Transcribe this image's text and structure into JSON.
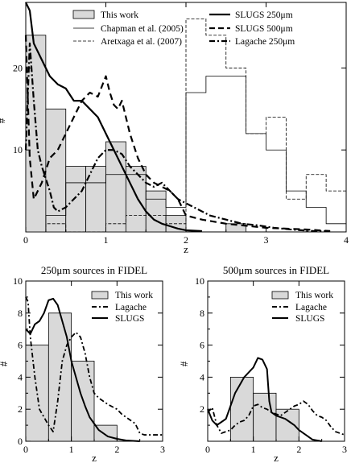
{
  "chart_data": [
    {
      "type": "bar",
      "xlabel": "z",
      "ylabel": "#",
      "xlim": [
        0,
        4
      ],
      "ylim": [
        0,
        28
      ],
      "xticks": [
        "0",
        "1",
        "2",
        "3",
        "4"
      ],
      "yticks": [
        "10",
        "20"
      ],
      "legend_left": [
        "This work",
        "Chapman et al. (2005)",
        "Aretxaga et al. (2007)"
      ],
      "legend_right": [
        "SLUGS 250μm",
        "SLUGS 500μm",
        "Lagache 250μm"
      ],
      "hist_this_work": {
        "edges": [
          0,
          0.25,
          0.5,
          0.75,
          1.0,
          1.25,
          1.5,
          1.75,
          2.0,
          2.25,
          2.5,
          2.75,
          3.0
        ],
        "counts": [
          24,
          15,
          8,
          8,
          11,
          8,
          5,
          2,
          0,
          0,
          1,
          0
        ]
      },
      "hist_chapman": {
        "edges": [
          0.25,
          0.5,
          0.75,
          1.0,
          1.25,
          1.5,
          1.75,
          2.0,
          2.25,
          2.5,
          2.75,
          3.0,
          3.25,
          3.5,
          3.75,
          4.0
        ],
        "counts": [
          2,
          6,
          6,
          7,
          7,
          4,
          3,
          17,
          19,
          19,
          12,
          10,
          5,
          3,
          1
        ]
      },
      "hist_aretxaga": {
        "edges": [
          0.25,
          0.5,
          0.75,
          1.0,
          1.25,
          1.5,
          1.75,
          2.0,
          2.25,
          2.5,
          2.75,
          3.0,
          3.25,
          3.5,
          3.75,
          4.0
        ],
        "counts": [
          1,
          0,
          0,
          1,
          2,
          2,
          1,
          26,
          24,
          20,
          12,
          14,
          4,
          7,
          5
        ]
      },
      "line_slugs250": {
        "x": [
          0.0,
          0.05,
          0.1,
          0.15,
          0.2,
          0.3,
          0.4,
          0.5,
          0.6,
          0.7,
          0.8,
          0.9,
          1.0,
          1.1,
          1.2,
          1.3,
          1.4,
          1.5,
          1.6,
          1.7,
          1.8,
          1.9,
          2.0,
          2.2
        ],
        "y": [
          28,
          27,
          23,
          22,
          21,
          19,
          18,
          17.5,
          16,
          16,
          15,
          14,
          12,
          10,
          8,
          6,
          4,
          2.5,
          1.5,
          1.0,
          0.7,
          0.4,
          0.2,
          0.1
        ]
      },
      "line_slugs500": {
        "x": [
          0.0,
          0.05,
          0.1,
          0.15,
          0.2,
          0.3,
          0.4,
          0.5,
          0.6,
          0.7,
          0.8,
          0.9,
          1.0,
          1.05,
          1.1,
          1.15,
          1.2,
          1.3,
          1.4,
          1.5,
          1.6,
          1.7,
          1.8,
          1.9,
          2.0,
          2.2,
          2.5,
          3.0,
          3.5,
          3.8
        ],
        "y": [
          24,
          9,
          4,
          5,
          6,
          9,
          10,
          12,
          14,
          16,
          17,
          16.5,
          19,
          17,
          15.5,
          15,
          16,
          12,
          9,
          7,
          6,
          5.5,
          5,
          4,
          2,
          1.5,
          1,
          0.5,
          0.3,
          0.1
        ]
      },
      "line_lagache250": {
        "x": [
          0.0,
          0.05,
          0.1,
          0.15,
          0.2,
          0.3,
          0.35,
          0.4,
          0.5,
          0.6,
          0.7,
          0.8,
          0.9,
          1.0,
          1.1,
          1.2,
          1.3,
          1.4,
          1.5,
          1.6,
          1.7,
          1.8,
          1.9,
          2.0,
          2.1,
          2.2,
          2.3,
          2.5,
          2.7,
          2.9,
          3.1,
          3.3,
          3.6,
          3.8
        ],
        "y": [
          10,
          23,
          16,
          10,
          8,
          5,
          3,
          2.5,
          3,
          4,
          5,
          7,
          9,
          10,
          10,
          9.5,
          8,
          7,
          6,
          5.5,
          6,
          5,
          4,
          3.5,
          3,
          2.5,
          2,
          1.5,
          1,
          0.8,
          0.5,
          0.3,
          0.1,
          0.1
        ]
      }
    },
    {
      "type": "bar",
      "title": "250μm sources in FIDEL",
      "xlabel": "z",
      "ylabel": "#",
      "xlim": [
        0,
        3
      ],
      "ylim": [
        0,
        10
      ],
      "xticks": [
        "0",
        "1",
        "2",
        "3"
      ],
      "yticks": [
        "0",
        "2",
        "4",
        "6",
        "8",
        "10"
      ],
      "legend": [
        "This work",
        "Lagache",
        "SLUGS"
      ],
      "hist_this_work": {
        "edges": [
          0,
          0.5,
          1.0,
          1.5,
          2.0
        ],
        "counts": [
          6,
          8,
          5,
          1
        ]
      },
      "line_lagache": {
        "x": [
          0.0,
          0.05,
          0.1,
          0.2,
          0.3,
          0.4,
          0.5,
          0.6,
          0.7,
          0.8,
          0.9,
          1.0,
          1.1,
          1.2,
          1.3,
          1.4,
          1.5,
          1.6,
          1.7,
          1.8,
          2.0,
          2.1,
          2.2,
          2.3,
          2.4,
          2.5,
          2.6,
          2.7,
          3.0
        ],
        "y": [
          9,
          8.7,
          6.5,
          4,
          2,
          1.5,
          1.0,
          0.6,
          2.5,
          5,
          6,
          6.5,
          6.8,
          6.5,
          5.5,
          4,
          3,
          2.7,
          2.5,
          2.3,
          2.0,
          1.7,
          1.5,
          1.3,
          1.1,
          0.5,
          0.4,
          0.4,
          0.4
        ]
      },
      "line_slugs": {
        "x": [
          0.0,
          0.1,
          0.2,
          0.3,
          0.4,
          0.5,
          0.6,
          0.7,
          0.8,
          0.9,
          1.0,
          1.1,
          1.2,
          1.3,
          1.4,
          1.5,
          1.6,
          1.7,
          1.8,
          2.0,
          2.2,
          2.5
        ],
        "y": [
          7.0,
          6.7,
          7.3,
          7.5,
          8.0,
          8.8,
          8.9,
          8.5,
          7.5,
          6.5,
          5.0,
          4.0,
          3.0,
          2.2,
          1.5,
          1.1,
          0.7,
          0.5,
          0.3,
          0.15,
          0.05,
          0.0
        ]
      }
    },
    {
      "type": "bar",
      "title": "500μm sources in FIDEL",
      "xlabel": "z",
      "ylabel": "#",
      "xlim": [
        0,
        3
      ],
      "ylim": [
        0,
        10
      ],
      "xticks": [
        "0",
        "1",
        "2",
        "3"
      ],
      "yticks": [
        "2",
        "4",
        "6",
        "8",
        "10"
      ],
      "legend": [
        "This work",
        "Lagache",
        "SLUGS"
      ],
      "hist_this_work": {
        "edges": [
          0.5,
          1.0,
          1.5,
          2.0
        ],
        "counts": [
          4,
          3,
          2
        ]
      },
      "line_lagache": {
        "x": [
          0.0,
          0.1,
          0.2,
          0.3,
          0.4,
          0.5,
          0.6,
          0.7,
          0.8,
          0.9,
          1.0,
          1.1,
          1.2,
          1.3,
          1.4,
          1.5,
          1.6,
          1.7,
          1.8,
          1.9,
          2.0,
          2.1,
          2.2,
          2.3,
          2.4,
          2.5,
          2.6,
          2.7,
          2.8,
          3.0
        ],
        "y": [
          1.8,
          2.1,
          1.0,
          0.5,
          0.6,
          0.7,
          1.0,
          1.2,
          1.3,
          1.6,
          2.2,
          2.3,
          2.1,
          2.0,
          1.8,
          1.7,
          1.6,
          1.8,
          2.0,
          2.2,
          2.3,
          2.5,
          2.3,
          1.9,
          1.6,
          1.5,
          1.3,
          0.9,
          0.6,
          0.4
        ]
      },
      "line_slugs": {
        "x": [
          0.0,
          0.1,
          0.2,
          0.3,
          0.4,
          0.5,
          0.6,
          0.7,
          0.8,
          0.9,
          1.0,
          1.1,
          1.2,
          1.3,
          1.35,
          1.4,
          1.5,
          1.6,
          1.7,
          1.8,
          1.9,
          2.0,
          2.1,
          2.2,
          2.3,
          2.4,
          2.5
        ],
        "y": [
          2.0,
          1.3,
          1.0,
          1.2,
          1.4,
          2.2,
          3.0,
          3.5,
          4.0,
          4.3,
          4.6,
          5.2,
          5.1,
          4.5,
          2.5,
          1.8,
          1.6,
          1.5,
          1.4,
          1.2,
          1.0,
          0.7,
          0.5,
          0.3,
          0.1,
          0.05,
          0.0
        ]
      }
    }
  ]
}
